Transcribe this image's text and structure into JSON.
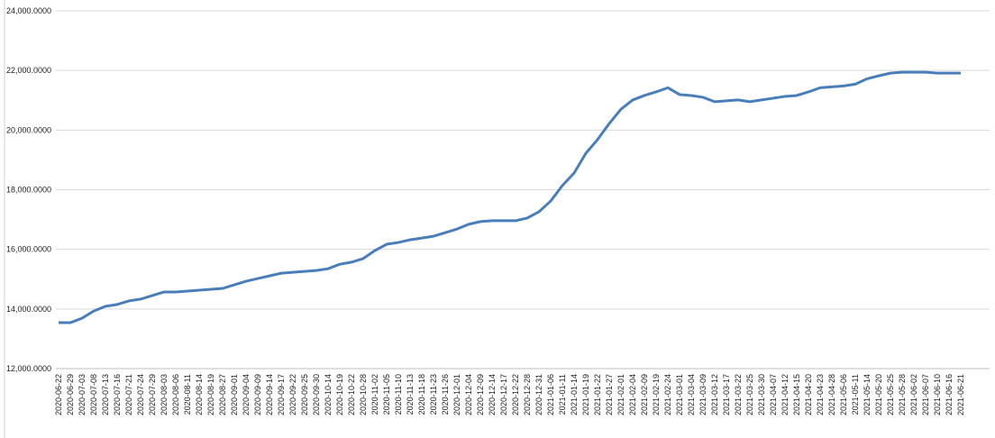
{
  "chart_data": {
    "type": "line",
    "categories": [
      "2020-06-22",
      "2020-06-29",
      "2020-07-03",
      "2020-07-08",
      "2020-07-13",
      "2020-07-16",
      "2020-07-21",
      "2020-07-24",
      "2020-07-29",
      "2020-08-03",
      "2020-08-06",
      "2020-08-11",
      "2020-08-14",
      "2020-08-19",
      "2020-08-27",
      "2020-09-01",
      "2020-09-04",
      "2020-09-09",
      "2020-09-14",
      "2020-09-17",
      "2020-09-22",
      "2020-09-25",
      "2020-09-30",
      "2020-10-14",
      "2020-10-19",
      "2020-10-22",
      "2020-10-28",
      "2020-11-02",
      "2020-11-05",
      "2020-11-10",
      "2020-11-13",
      "2020-11-18",
      "2020-11-23",
      "2020-11-26",
      "2020-12-01",
      "2020-12-04",
      "2020-12-09",
      "2020-12-14",
      "2020-12-17",
      "2020-12-22",
      "2020-12-28",
      "2020-12-31",
      "2021-01-06",
      "2021-01-11",
      "2021-01-14",
      "2021-01-19",
      "2021-01-22",
      "2021-01-27",
      "2021-02-01",
      "2021-02-04",
      "2021-02-09",
      "2021-02-19",
      "2021-02-24",
      "2021-03-01",
      "2021-03-04",
      "2021-03-09",
      "2021-03-12",
      "2021-03-17",
      "2021-03-22",
      "2021-03-25",
      "2021-03-30",
      "2021-04-07",
      "2021-04-12",
      "2021-04-15",
      "2021-04-20",
      "2021-04-23",
      "2021-04-28",
      "2021-05-06",
      "2021-05-11",
      "2021-05-14",
      "2021-05-20",
      "2021-05-25",
      "2021-05-28",
      "2021-06-02",
      "2021-06-07",
      "2021-06-10",
      "2021-06-16",
      "2021-06-21"
    ],
    "series": [
      {
        "color": "#4a7ebb",
        "values": [
          13540,
          13540,
          13690,
          13930,
          14090,
          14150,
          14270,
          14330,
          14450,
          14570,
          14570,
          14600,
          14630,
          14660,
          14690,
          14810,
          14930,
          15020,
          15110,
          15200,
          15230,
          15260,
          15290,
          15350,
          15500,
          15570,
          15690,
          15960,
          16170,
          16230,
          16320,
          16380,
          16440,
          16560,
          16680,
          16840,
          16930,
          16960,
          16960,
          16960,
          17050,
          17260,
          17620,
          18140,
          18560,
          19220,
          19680,
          20220,
          20700,
          21010,
          21160,
          21280,
          21420,
          21190,
          21160,
          21100,
          20950,
          20980,
          21010,
          20950,
          21010,
          21070,
          21130,
          21160,
          21280,
          21420,
          21450,
          21480,
          21540,
          21720,
          21820,
          21910,
          21940,
          21940,
          21940,
          21910,
          21910,
          21910
        ]
      }
    ],
    "ylim": [
      12000,
      24000
    ],
    "yticks": [
      {
        "value": 12000,
        "label": "12,000.0000"
      },
      {
        "value": 14000,
        "label": "14,000.0000"
      },
      {
        "value": 16000,
        "label": "16,000.0000"
      },
      {
        "value": 18000,
        "label": "18,000.0000"
      },
      {
        "value": 20000,
        "label": "20,000.0000"
      },
      {
        "value": 22000,
        "label": "22,000.0000"
      },
      {
        "value": 24000,
        "label": "24,000.0000"
      }
    ],
    "grid": true
  }
}
